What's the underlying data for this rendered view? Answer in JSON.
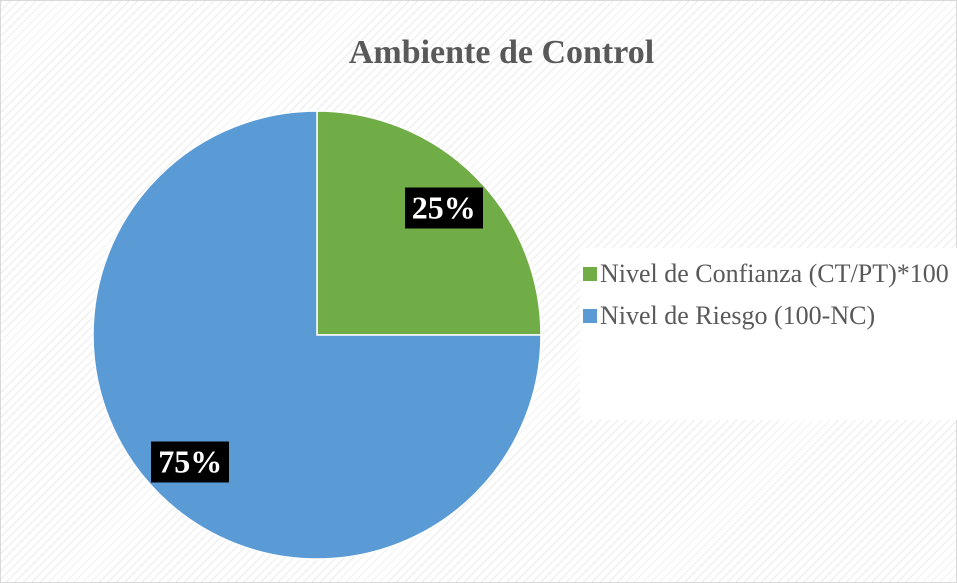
{
  "chart_data": {
    "type": "pie",
    "title": "Ambiente de Control",
    "categories": [
      "Nivel de Confianza (CT/PT)*100",
      "Nivel de Riesgo (100-NC)"
    ],
    "values": [
      25,
      75
    ],
    "value_labels": [
      "25%",
      "75%"
    ],
    "colors": [
      "#70ad47",
      "#5b9bd5"
    ],
    "legend": "right"
  }
}
